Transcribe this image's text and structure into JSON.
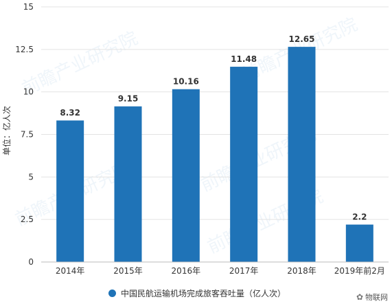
{
  "chart_data": {
    "type": "bar",
    "categories": [
      "2014年",
      "2015年",
      "2016年",
      "2017年",
      "2018年",
      "2019年前2月"
    ],
    "series": [
      {
        "name": "中国民航运输机场完成旅客吞吐量（亿人次）",
        "values": [
          8.32,
          9.15,
          10.16,
          11.48,
          12.65,
          2.2
        ],
        "labels": [
          "8.32",
          "9.15",
          "10.16",
          "11.48",
          "12.65",
          "2.2"
        ],
        "color": "#1f73b7"
      }
    ],
    "ylabel": "单位：亿人次",
    "ylim": [
      0,
      15
    ],
    "yticks": [
      0,
      2.5,
      5,
      7.5,
      10,
      12.5,
      15
    ],
    "ytick_labels": [
      "0",
      "2.5",
      "5",
      "7.5",
      "10",
      "12.5",
      "15"
    ],
    "grid": true,
    "legend_position": "bottom"
  },
  "watermark": {
    "text": "前瞻产业研究院",
    "credit_icon": "wechat-icon",
    "credit_text": "物联网"
  }
}
